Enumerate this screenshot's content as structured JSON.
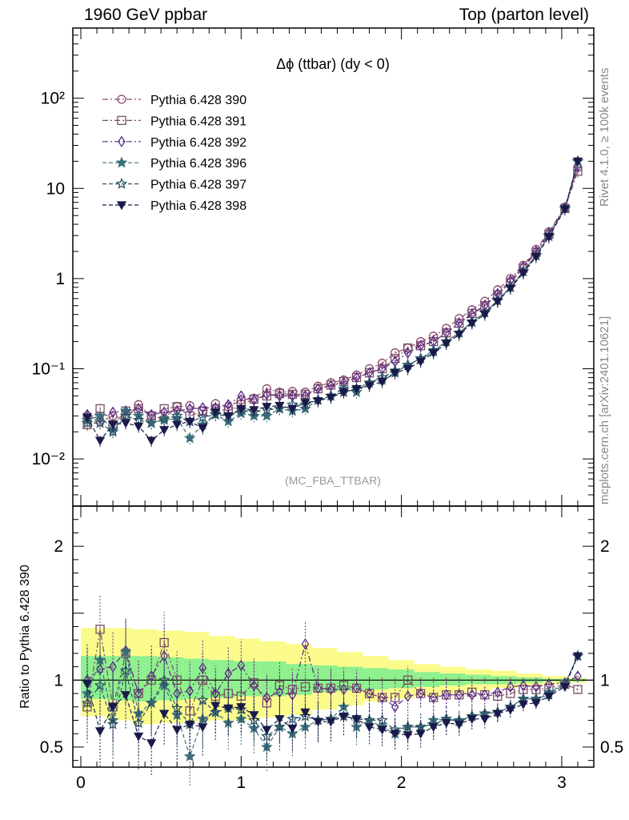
{
  "header": {
    "left": "1960 GeV ppbar",
    "right": "Top (parton level)"
  },
  "side_labels": {
    "rivet": "Rivet 4.1.0, ≥ 100k events",
    "mcplots": "mcplots.cern.ch [arXiv:2401.10621]"
  },
  "chart_data": [
    {
      "type": "line",
      "title": "Δϕ (ttbar) (dy < 0)",
      "analysis_tag": "(MC_FBA_TTBAR)",
      "yscale": "log",
      "xlim": [
        -0.05,
        3.2
      ],
      "ylim": [
        0.003,
        600
      ],
      "xticks": [
        0,
        1,
        2,
        3
      ],
      "yticks": [
        {
          "value": 0.01,
          "label": "10⁻²"
        },
        {
          "value": 0.1,
          "label": "10⁻¹"
        },
        {
          "value": 1,
          "label": "1"
        },
        {
          "value": 10,
          "label": "10"
        },
        {
          "value": 100,
          "label": "10²"
        }
      ],
      "legend_position": "top-left",
      "x": [
        0.04,
        0.12,
        0.2,
        0.28,
        0.36,
        0.44,
        0.52,
        0.6,
        0.68,
        0.76,
        0.84,
        0.92,
        1.0,
        1.08,
        1.16,
        1.24,
        1.32,
        1.4,
        1.48,
        1.56,
        1.64,
        1.72,
        1.8,
        1.88,
        1.96,
        2.04,
        2.12,
        2.2,
        2.28,
        2.36,
        2.44,
        2.52,
        2.6,
        2.68,
        2.76,
        2.84,
        2.92,
        3.02,
        3.1
      ],
      "series": [
        {
          "name": "Pythia 6.428 390",
          "color": "#8e4a6e",
          "marker": "circle-open",
          "dash": "dashdot",
          "values": [
            0.03,
            0.026,
            0.03,
            0.028,
            0.04,
            0.03,
            0.028,
            0.038,
            0.039,
            0.034,
            0.041,
            0.038,
            0.045,
            0.047,
            0.06,
            0.055,
            0.056,
            0.055,
            0.064,
            0.07,
            0.075,
            0.085,
            0.1,
            0.115,
            0.15,
            0.17,
            0.2,
            0.23,
            0.28,
            0.36,
            0.45,
            0.56,
            0.75,
            1.0,
            1.4,
            2.1,
            3.3,
            6.2,
            17
          ]
        },
        {
          "name": "Pythia 6.428 391",
          "color": "#7b4f63",
          "marker": "square-open",
          "dash": "dashdot",
          "values": [
            0.024,
            0.036,
            0.024,
            0.034,
            0.036,
            0.03,
            0.036,
            0.038,
            0.03,
            0.034,
            0.036,
            0.034,
            0.04,
            0.046,
            0.05,
            0.053,
            0.052,
            0.052,
            0.06,
            0.066,
            0.072,
            0.08,
            0.09,
            0.1,
            0.13,
            0.17,
            0.18,
            0.2,
            0.25,
            0.32,
            0.41,
            0.5,
            0.66,
            0.9,
            1.3,
            1.95,
            3.1,
            6.0,
            15.5
          ]
        },
        {
          "name": "Pythia 6.428 392",
          "color": "#5a2a84",
          "marker": "diamond-open",
          "dash": "dashdot",
          "values": [
            0.031,
            0.028,
            0.033,
            0.034,
            0.036,
            0.031,
            0.033,
            0.034,
            0.036,
            0.037,
            0.037,
            0.04,
            0.05,
            0.045,
            0.052,
            0.05,
            0.05,
            0.05,
            0.06,
            0.065,
            0.07,
            0.08,
            0.09,
            0.1,
            0.12,
            0.15,
            0.18,
            0.2,
            0.25,
            0.32,
            0.4,
            0.5,
            0.68,
            0.95,
            1.35,
            2.0,
            3.2,
            6.1,
            17.5
          ]
        },
        {
          "name": "Pythia 6.428 396",
          "color": "#3b6f7a",
          "marker": "star-filled",
          "dash": "dashed",
          "values": [
            0.027,
            0.03,
            0.021,
            0.034,
            0.03,
            0.025,
            0.027,
            0.028,
            0.017,
            0.024,
            0.031,
            0.026,
            0.032,
            0.03,
            0.03,
            0.036,
            0.034,
            0.036,
            0.045,
            0.05,
            0.06,
            0.055,
            0.07,
            0.075,
            0.09,
            0.11,
            0.13,
            0.16,
            0.2,
            0.25,
            0.33,
            0.42,
            0.57,
            0.8,
            1.2,
            1.8,
            3.0,
            6.0,
            20
          ]
        },
        {
          "name": "Pythia 6.428 397",
          "color": "#2e5566",
          "marker": "star-open",
          "dash": "dashed",
          "values": [
            0.025,
            0.025,
            0.02,
            0.03,
            0.027,
            0.025,
            0.028,
            0.03,
            0.026,
            0.029,
            0.031,
            0.03,
            0.035,
            0.033,
            0.035,
            0.036,
            0.04,
            0.04,
            0.045,
            0.05,
            0.055,
            0.06,
            0.07,
            0.08,
            0.095,
            0.11,
            0.13,
            0.155,
            0.2,
            0.25,
            0.33,
            0.42,
            0.57,
            0.8,
            1.2,
            1.8,
            2.95,
            6.0,
            20
          ]
        },
        {
          "name": "Pythia 6.428 398",
          "color": "#1a1a4a",
          "marker": "triangle-down-filled",
          "dash": "dashed",
          "values": [
            0.029,
            0.016,
            0.024,
            0.025,
            0.023,
            0.016,
            0.021,
            0.024,
            0.026,
            0.022,
            0.033,
            0.03,
            0.036,
            0.035,
            0.038,
            0.039,
            0.036,
            0.042,
            0.044,
            0.048,
            0.055,
            0.06,
            0.065,
            0.072,
            0.09,
            0.1,
            0.12,
            0.15,
            0.19,
            0.24,
            0.32,
            0.4,
            0.56,
            0.78,
            1.15,
            1.75,
            2.9,
            5.9,
            20
          ]
        }
      ]
    },
    {
      "type": "line",
      "ylabel": "Ratio to Pythia 6.428 390",
      "xlim": [
        -0.05,
        3.2
      ],
      "ylim": [
        0.35,
        2.3
      ],
      "xticks": [
        0,
        1,
        2,
        3
      ],
      "yticks": [
        0.5,
        1,
        2
      ],
      "band_edges": [
        0.0,
        0.16,
        0.32,
        0.48,
        0.64,
        0.8,
        0.96,
        1.12,
        1.28,
        1.44,
        1.6,
        1.76,
        1.92,
        2.08,
        2.24,
        2.4,
        2.56,
        2.72,
        2.88,
        3.04,
        3.15
      ],
      "band_yellow": [
        [
          0.73,
          1.39
        ],
        [
          0.7,
          1.39
        ],
        [
          0.67,
          1.38
        ],
        [
          0.68,
          1.37
        ],
        [
          0.69,
          1.36
        ],
        [
          0.7,
          1.33
        ],
        [
          0.7,
          1.31
        ],
        [
          0.72,
          1.29
        ],
        [
          0.74,
          1.27
        ],
        [
          0.78,
          1.24
        ],
        [
          0.81,
          1.21
        ],
        [
          0.84,
          1.18
        ],
        [
          0.86,
          1.15
        ],
        [
          0.88,
          1.12
        ],
        [
          0.9,
          1.1
        ],
        [
          0.92,
          1.08
        ],
        [
          0.94,
          1.07
        ],
        [
          0.96,
          1.05
        ],
        [
          0.97,
          1.03
        ],
        [
          0.98,
          1.02
        ]
      ],
      "band_green": [
        [
          0.86,
          1.18
        ],
        [
          0.85,
          1.18
        ],
        [
          0.84,
          1.18
        ],
        [
          0.85,
          1.17
        ],
        [
          0.86,
          1.16
        ],
        [
          0.87,
          1.15
        ],
        [
          0.88,
          1.14
        ],
        [
          0.88,
          1.14
        ],
        [
          0.89,
          1.12
        ],
        [
          0.91,
          1.11
        ],
        [
          0.92,
          1.1
        ],
        [
          0.93,
          1.09
        ],
        [
          0.94,
          1.08
        ],
        [
          0.95,
          1.06
        ],
        [
          0.96,
          1.05
        ],
        [
          0.97,
          1.04
        ],
        [
          0.97,
          1.03
        ],
        [
          0.98,
          1.02
        ],
        [
          0.99,
          1.01
        ],
        [
          0.99,
          1.01
        ]
      ],
      "series": [
        {
          "name": "Pythia 6.428 391",
          "values": [
            0.8,
            1.38,
            0.8,
            1.2,
            0.9,
            1.0,
            1.28,
            1.0,
            0.77,
            1.0,
            0.88,
            0.9,
            0.88,
            0.98,
            0.83,
            0.96,
            0.93,
            0.95,
            0.94,
            0.94,
            0.96,
            0.94,
            0.9,
            0.87,
            0.87,
            1.0,
            0.9,
            0.87,
            0.89,
            0.89,
            0.91,
            0.89,
            0.88,
            0.9,
            0.93,
            0.93,
            0.94,
            0.97,
            0.93
          ]
        },
        {
          "name": "Pythia 6.428 392",
          "values": [
            1.0,
            1.08,
            1.1,
            1.22,
            0.9,
            1.03,
            1.18,
            0.9,
            0.92,
            1.09,
            0.9,
            1.05,
            1.11,
            0.96,
            0.87,
            0.91,
            0.89,
            1.27,
            0.94,
            0.93,
            0.93,
            0.94,
            0.9,
            0.87,
            0.8,
            0.88,
            0.9,
            0.87,
            0.89,
            0.89,
            0.89,
            0.89,
            0.91,
            0.95,
            0.96,
            0.95,
            0.97,
            0.98,
            1.03
          ]
        },
        {
          "name": "Pythia 6.428 396",
          "values": [
            0.9,
            1.15,
            0.7,
            1.21,
            0.75,
            0.83,
            0.96,
            0.74,
            0.43,
            0.71,
            0.76,
            0.68,
            0.71,
            0.64,
            0.5,
            0.65,
            0.6,
            0.65,
            0.7,
            0.71,
            0.8,
            0.65,
            0.7,
            0.65,
            0.6,
            0.65,
            0.65,
            0.7,
            0.71,
            0.7,
            0.73,
            0.75,
            0.76,
            0.8,
            0.86,
            0.86,
            0.91,
            0.97,
            1.18
          ]
        },
        {
          "name": "Pythia 6.428 397",
          "values": [
            0.83,
            0.96,
            0.67,
            1.07,
            0.68,
            0.83,
            1.0,
            0.79,
            0.67,
            0.85,
            0.76,
            0.79,
            0.78,
            0.7,
            0.58,
            0.65,
            0.71,
            0.73,
            0.7,
            0.71,
            0.73,
            0.71,
            0.7,
            0.7,
            0.63,
            0.65,
            0.65,
            0.67,
            0.71,
            0.69,
            0.73,
            0.75,
            0.76,
            0.8,
            0.86,
            0.86,
            0.89,
            0.97,
            1.18
          ]
        },
        {
          "name": "Pythia 6.428 398",
          "values": [
            0.97,
            0.62,
            0.8,
            0.89,
            0.58,
            0.53,
            0.75,
            0.63,
            0.67,
            0.65,
            0.81,
            0.79,
            0.8,
            0.74,
            0.63,
            0.71,
            0.64,
            0.76,
            0.69,
            0.69,
            0.73,
            0.71,
            0.65,
            0.63,
            0.6,
            0.59,
            0.6,
            0.65,
            0.68,
            0.67,
            0.71,
            0.71,
            0.75,
            0.78,
            0.82,
            0.83,
            0.88,
            0.95,
            1.18
          ]
        }
      ]
    }
  ]
}
